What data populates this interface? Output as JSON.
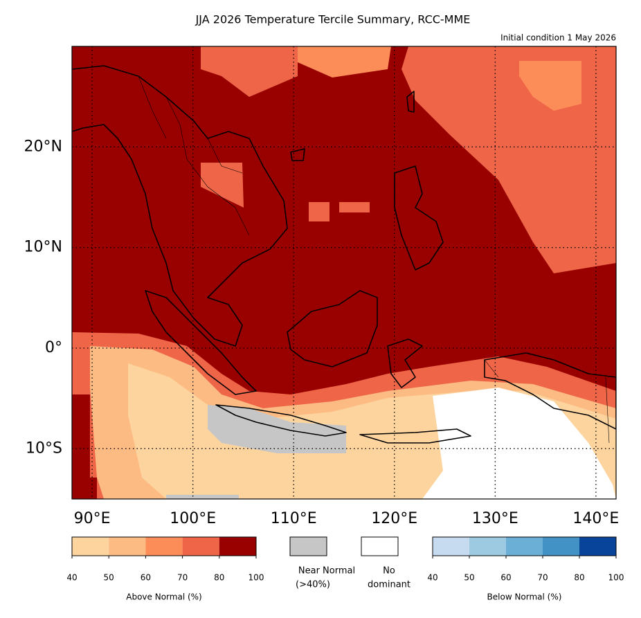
{
  "title": "JJA 2026 Temperature Tercile Summary, RCC-MME",
  "subtitle": "Initial condition 1 May 2026",
  "map": {
    "xlim": [
      88,
      142
    ],
    "ylim": [
      -15,
      30
    ],
    "xticks": [
      {
        "value": 90,
        "label": "90°E"
      },
      {
        "value": 100,
        "label": "100°E"
      },
      {
        "value": 110,
        "label": "110°E"
      },
      {
        "value": 120,
        "label": "120°E"
      },
      {
        "value": 130,
        "label": "130°E"
      },
      {
        "value": 140,
        "label": "140°E"
      }
    ],
    "yticks": [
      {
        "value": 20,
        "label": "20°N"
      },
      {
        "value": 10,
        "label": "10°N"
      },
      {
        "value": 0,
        "label": "0°"
      },
      {
        "value": -10,
        "label": "10°S"
      }
    ]
  },
  "legend": {
    "above": {
      "label": "Above Normal (%)",
      "ticks": [
        40,
        50,
        60,
        70,
        80,
        100
      ],
      "colors": [
        "#fdd49e",
        "#fdbb84",
        "#fc8d59",
        "#ef6548",
        "#990000"
      ]
    },
    "near": {
      "label_lines": [
        "Near Normal",
        "(>40%)"
      ],
      "color": "#c6c6c6"
    },
    "none": {
      "label_lines": [
        "No",
        "dominant"
      ],
      "color": "#ffffff"
    },
    "below": {
      "label": "Below Normal (%)",
      "ticks": [
        40,
        50,
        60,
        70,
        80,
        100
      ],
      "colors": [
        "#c6dbef",
        "#9ecae1",
        "#6baed6",
        "#4292c6",
        "#08459a"
      ]
    }
  }
}
